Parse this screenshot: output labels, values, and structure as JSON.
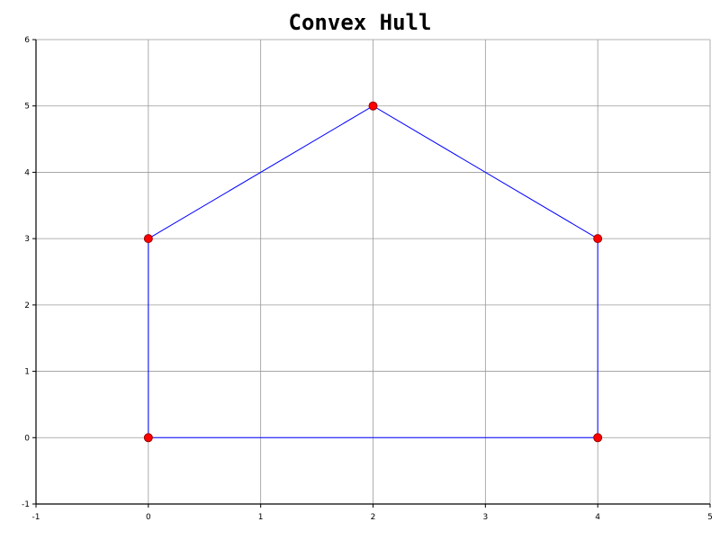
{
  "chart_data": {
    "type": "scatter",
    "title": "Convex Hull",
    "xlabel": "",
    "ylabel": "",
    "xlim": [
      -1,
      5
    ],
    "ylim": [
      -1,
      6
    ],
    "x_ticks": [
      -1,
      0,
      1,
      2,
      3,
      4,
      5
    ],
    "y_ticks": [
      -1,
      0,
      1,
      2,
      3,
      4,
      5,
      6
    ],
    "grid": true,
    "legend": "none",
    "series": [
      {
        "kind": "points",
        "color": "#ff0000",
        "x": [
          0,
          4,
          4,
          2,
          0
        ],
        "y": [
          0,
          0,
          3,
          5,
          3
        ]
      },
      {
        "kind": "hull-polygon",
        "color": "#0000ff",
        "x": [
          0,
          4,
          4,
          2,
          0
        ],
        "y": [
          0,
          0,
          3,
          5,
          3
        ]
      }
    ]
  }
}
